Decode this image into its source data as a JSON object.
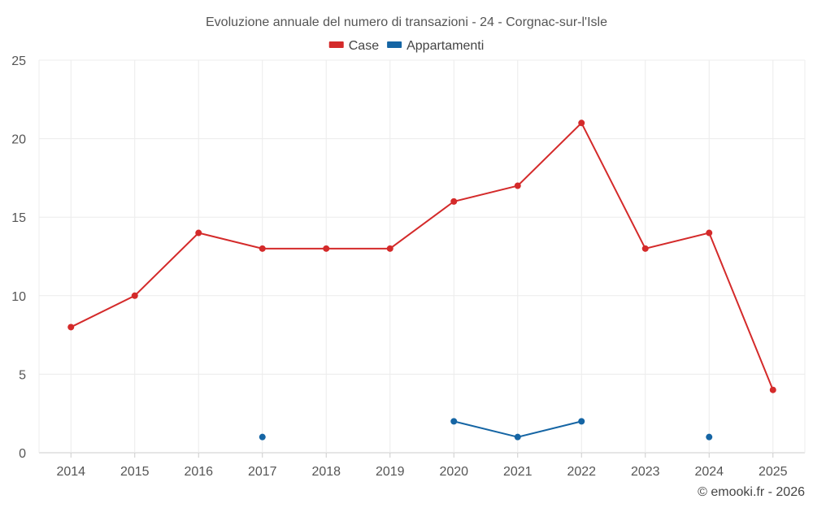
{
  "chart_data": {
    "type": "line",
    "title": "Evoluzione annuale del numero di transazioni - 24 - Corgnac-sur-l'Isle",
    "categories": [
      "2014",
      "2015",
      "2016",
      "2017",
      "2018",
      "2019",
      "2020",
      "2021",
      "2022",
      "2023",
      "2024",
      "2025"
    ],
    "ylim": [
      0,
      25
    ],
    "yticks": [
      0,
      5,
      10,
      15,
      20,
      25
    ],
    "grid": true,
    "legend_position": "top-center",
    "series": [
      {
        "name": "Case",
        "color": "#d42a2a",
        "values": [
          8,
          10,
          14,
          13,
          13,
          13,
          16,
          17,
          21,
          13,
          14,
          4
        ]
      },
      {
        "name": "Appartamenti",
        "color": "#1565a4",
        "values": [
          null,
          null,
          null,
          1,
          null,
          null,
          2,
          1,
          2,
          null,
          1,
          null
        ]
      }
    ]
  },
  "footer": {
    "credit": "© emooki.fr - 2026"
  }
}
